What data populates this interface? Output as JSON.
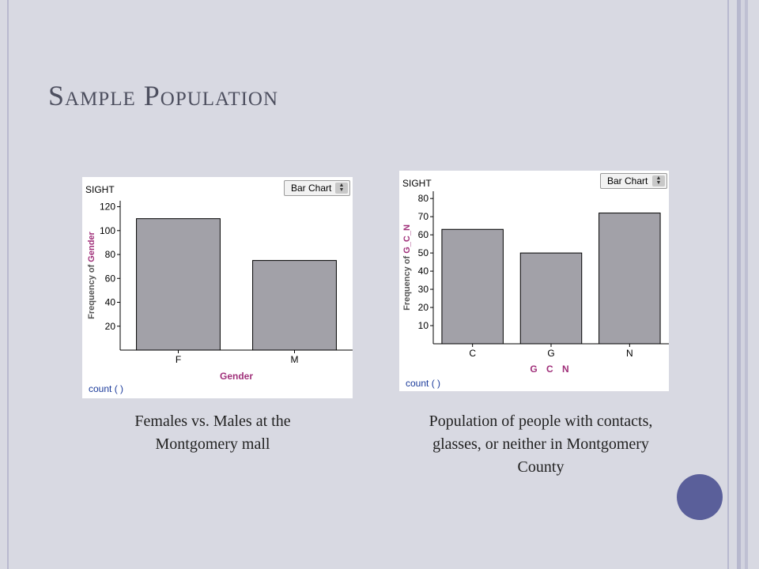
{
  "slide": {
    "title": "Sample Population",
    "caption_left": "Females vs. Males at the Montgomery mall",
    "caption_right": "Population of people with contacts, glasses, or neither in Montgomery County"
  },
  "colors": {
    "background": "#d8d9e2",
    "bar_fill": "#a2a1a8",
    "axis_label_accent": "#a0307a",
    "accent_circle": "#5a5f9a"
  },
  "chart_data": [
    {
      "type": "bar",
      "dataset_label": "SIGHT",
      "dropdown_label": "Bar Chart",
      "categories": [
        "F",
        "M"
      ],
      "values": [
        110,
        75
      ],
      "xlabel": "Gender",
      "ylabel_prefix": "Frequency of ",
      "ylabel_var": "Gender",
      "yticks": [
        20,
        40,
        60,
        80,
        100,
        120
      ],
      "ylim": [
        0,
        125
      ],
      "footer": "count (  )",
      "grid": false
    },
    {
      "type": "bar",
      "dataset_label": "SIGHT",
      "dropdown_label": "Bar Chart",
      "categories": [
        "C",
        "G",
        "N"
      ],
      "values": [
        63,
        50,
        72
      ],
      "xlabel": "G C N",
      "ylabel_prefix": "Frequency of ",
      "ylabel_var": "G_C_N",
      "yticks": [
        10,
        20,
        30,
        40,
        50,
        60,
        70,
        80
      ],
      "ylim": [
        0,
        84
      ],
      "footer": "count (  )",
      "grid": false
    }
  ]
}
